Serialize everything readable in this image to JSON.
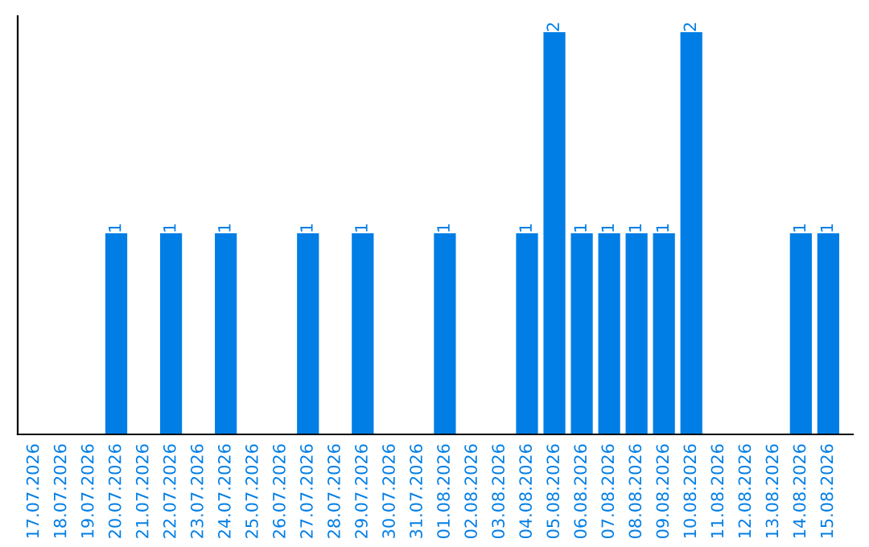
{
  "chart_data": {
    "type": "bar",
    "categories": [
      "17.07.2026",
      "18.07.2026",
      "19.07.2026",
      "20.07.2026",
      "21.07.2026",
      "22.07.2026",
      "23.07.2026",
      "24.07.2026",
      "25.07.2026",
      "26.07.2026",
      "27.07.2026",
      "28.07.2026",
      "29.07.2026",
      "30.07.2026",
      "31.07.2026",
      "01.08.2026",
      "02.08.2026",
      "03.08.2026",
      "04.08.2026",
      "05.08.2026",
      "06.08.2026",
      "07.08.2026",
      "08.08.2026",
      "09.08.2026",
      "10.08.2026",
      "11.08.2026",
      "12.08.2026",
      "13.08.2026",
      "14.08.2026",
      "15.08.2026"
    ],
    "values": [
      0,
      0,
      0,
      1,
      0,
      1,
      0,
      1,
      0,
      0,
      1,
      0,
      1,
      0,
      0,
      1,
      0,
      0,
      1,
      2,
      1,
      1,
      1,
      1,
      2,
      0,
      0,
      0,
      1,
      1
    ],
    "value_labels": [
      null,
      null,
      null,
      "1",
      null,
      "1",
      null,
      "1",
      null,
      null,
      "1",
      null,
      "1",
      null,
      null,
      "1",
      null,
      null,
      "1",
      "2",
      "1",
      "1",
      "1",
      "1",
      "2",
      null,
      null,
      null,
      "1",
      "1"
    ],
    "color": "#007ee5",
    "ylim": [
      0,
      2.08
    ],
    "tick_labels": "x",
    "grid": false,
    "legend": false
  }
}
